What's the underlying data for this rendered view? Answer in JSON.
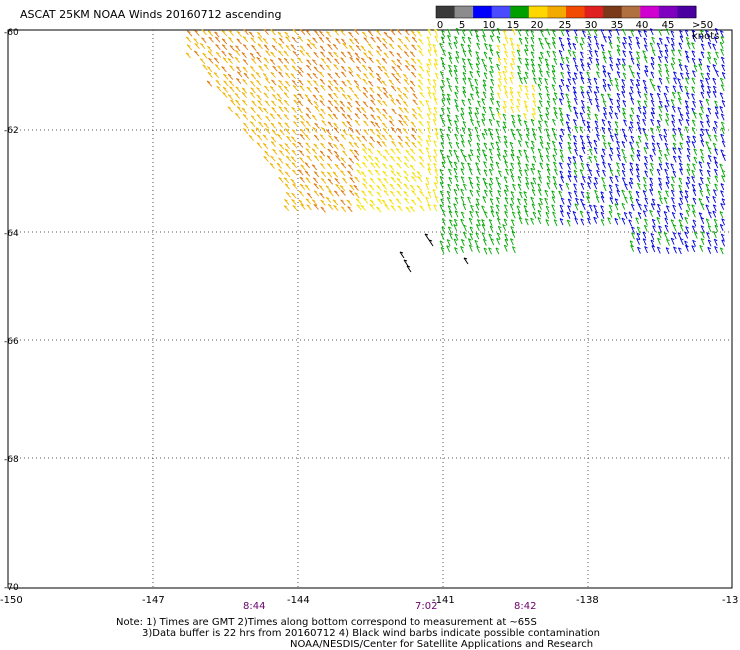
{
  "title": "ASCAT 25KM NOAA Winds 20160712 ascending",
  "colorbar": {
    "labels": [
      "0",
      "5",
      "10",
      "15",
      "20",
      "25",
      "30",
      "35",
      "40",
      "45"
    ],
    "units": ">50 knots",
    "colors": [
      "#3a3a3a",
      "#8c8c8c",
      "#0000ff",
      "#4a4aff",
      "#00a000",
      "#ffd700",
      "#f2a900",
      "#f24a00",
      "#e02020",
      "#7a3a1a",
      "#b07040",
      "#d000d0",
      "#8000c0",
      "#4a00a0"
    ]
  },
  "axes": {
    "lon_ticks": [
      "-150",
      "-147",
      "-144",
      "-141",
      "-138",
      "-13"
    ],
    "lat_ticks": [
      "-60",
      "-62",
      "-64",
      "-66",
      "-68",
      "-70"
    ]
  },
  "times": [
    "8:44",
    "7:02",
    "8:42"
  ],
  "notes": {
    "line1": "Note: 1) Times are GMT 2)Times along bottom correspond to measurement at ~65S",
    "line2": "3)Data buffer is 22 hrs from 20160712 4) Black wind barbs indicate possible contamination",
    "credit": "NOAA/NESDIS/Center for Satellite Applications and Research"
  },
  "barb_colors": {
    "orange": "#e07a10",
    "gold": "#f0b400",
    "yellow": "#f5e000",
    "green": "#00a800",
    "blue": "#0000dd",
    "black": "#000000"
  }
}
